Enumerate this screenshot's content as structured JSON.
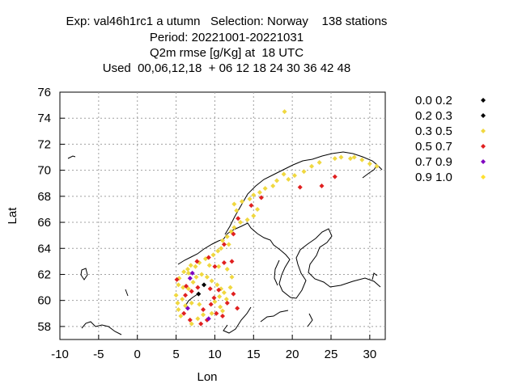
{
  "title": {
    "line1": "Exp: val46h1rc1 a utumn   Selection: Norway    138 stations",
    "line2": "Period: 20221001-20221031",
    "line3": "Q2m rmse [g/Kg] at  18 UTC",
    "line4": "Used  00,06,12,18  + 06 12 18 24 30 36 42 48"
  },
  "chart_data": {
    "type": "scatter",
    "xlabel": "Lon",
    "ylabel": "Lat",
    "xlim": [
      -10,
      32
    ],
    "ylim": [
      57,
      76
    ],
    "xticks": [
      "-10",
      "-5",
      "0",
      "5",
      "10",
      "15",
      "20",
      "25",
      "30"
    ],
    "yticks": [
      "58",
      "60",
      "62",
      "64",
      "66",
      "68",
      "70",
      "72",
      "74",
      "76"
    ],
    "grid": true,
    "legend_position": "top-right",
    "legend": [
      {
        "label": "0.0 0.2",
        "color": "#000000"
      },
      {
        "label": "0.2 0.3",
        "color": "#000000"
      },
      {
        "label": "0.3 0.5",
        "color": "#f0d840"
      },
      {
        "label": "0.5 0.7",
        "color": "#e02020"
      },
      {
        "label": "0.7 0.9",
        "color": "#8000c0"
      },
      {
        "label": "0.9 1.0",
        "color": "#ffe030"
      }
    ],
    "series": [
      {
        "name": "0.2 0.3",
        "color": "#000000",
        "points": [
          [
            7.9,
            60.5
          ],
          [
            8.6,
            61.2
          ]
        ]
      },
      {
        "name": "0.3 0.5",
        "color": "#f0d840",
        "points": [
          [
            19.0,
            74.5
          ],
          [
            26.3,
            71.0
          ],
          [
            28.0,
            71.0
          ],
          [
            29.0,
            70.8
          ],
          [
            30.9,
            70.3
          ],
          [
            30.0,
            70.5
          ],
          [
            25.5,
            70.9
          ],
          [
            23.5,
            70.6
          ],
          [
            27.5,
            70.9
          ],
          [
            21.5,
            69.9
          ],
          [
            22.5,
            70.3
          ],
          [
            20.3,
            69.6
          ],
          [
            19.5,
            69.3
          ],
          [
            18.9,
            69.7
          ],
          [
            18.0,
            69.2
          ],
          [
            17.5,
            68.8
          ],
          [
            16.5,
            68.6
          ],
          [
            15.8,
            68.3
          ],
          [
            15.0,
            68.1
          ],
          [
            14.5,
            67.8
          ],
          [
            13.5,
            67.6
          ],
          [
            12.5,
            67.4
          ],
          [
            12.8,
            66.9
          ],
          [
            15.5,
            67.0
          ],
          [
            15.0,
            66.5
          ],
          [
            14.2,
            66.2
          ],
          [
            13.3,
            66.0
          ],
          [
            12.5,
            65.6
          ],
          [
            12.1,
            65.3
          ],
          [
            11.6,
            64.9
          ],
          [
            11.0,
            64.6
          ],
          [
            11.8,
            64.3
          ],
          [
            10.8,
            64.0
          ],
          [
            10.4,
            63.8
          ],
          [
            9.8,
            63.5
          ],
          [
            8.8,
            63.2
          ],
          [
            8.0,
            62.9
          ],
          [
            7.5,
            62.6
          ],
          [
            6.9,
            62.7
          ],
          [
            6.5,
            62.4
          ],
          [
            6.0,
            62.2
          ],
          [
            5.4,
            61.7
          ],
          [
            5.3,
            61.2
          ],
          [
            5.9,
            61.0
          ],
          [
            6.6,
            60.9
          ],
          [
            7.2,
            61.4
          ],
          [
            7.6,
            61.8
          ],
          [
            8.3,
            62.0
          ],
          [
            9.0,
            61.8
          ],
          [
            9.6,
            61.5
          ],
          [
            10.3,
            61.2
          ],
          [
            10.8,
            60.9
          ],
          [
            11.2,
            60.6
          ],
          [
            10.6,
            60.3
          ],
          [
            11.5,
            60.1
          ],
          [
            10.0,
            59.9
          ],
          [
            10.7,
            59.5
          ],
          [
            11.0,
            59.2
          ],
          [
            9.6,
            59.0
          ],
          [
            8.5,
            58.9
          ],
          [
            7.8,
            58.6
          ],
          [
            7.0,
            58.2
          ],
          [
            5.6,
            58.8
          ],
          [
            5.3,
            59.3
          ],
          [
            5.2,
            59.8
          ],
          [
            6.2,
            59.6
          ],
          [
            7.0,
            59.8
          ],
          [
            8.0,
            59.7
          ],
          [
            12.0,
            61.0
          ],
          [
            12.2,
            61.8
          ],
          [
            11.6,
            62.4
          ],
          [
            9.3,
            62.7
          ],
          [
            10.5,
            62.6
          ],
          [
            6.6,
            62.1
          ],
          [
            5.0,
            60.4
          ],
          [
            5.8,
            60.1
          ]
        ]
      },
      {
        "name": "0.5 0.7",
        "color": "#e02020",
        "points": [
          [
            25.5,
            69.5
          ],
          [
            23.8,
            68.8
          ],
          [
            21.0,
            68.7
          ],
          [
            16.0,
            67.9
          ],
          [
            14.7,
            67.3
          ],
          [
            13.0,
            66.3
          ],
          [
            12.4,
            65.1
          ],
          [
            11.2,
            64.3
          ],
          [
            9.2,
            63.3
          ],
          [
            7.7,
            63.0
          ],
          [
            10.0,
            62.6
          ],
          [
            11.2,
            62.9
          ],
          [
            12.2,
            63.0
          ],
          [
            5.1,
            61.6
          ],
          [
            6.3,
            61.1
          ],
          [
            7.0,
            60.7
          ],
          [
            7.8,
            61.0
          ],
          [
            9.4,
            60.9
          ],
          [
            10.5,
            60.8
          ],
          [
            12.4,
            60.5
          ],
          [
            9.9,
            60.2
          ],
          [
            11.6,
            59.8
          ],
          [
            9.5,
            59.7
          ],
          [
            8.5,
            59.3
          ],
          [
            10.2,
            59.0
          ],
          [
            12.9,
            59.4
          ],
          [
            6.0,
            59.0
          ],
          [
            6.8,
            58.5
          ],
          [
            8.2,
            58.2
          ],
          [
            9.0,
            58.5
          ],
          [
            11.0,
            58.8
          ],
          [
            6.2,
            60.4
          ]
        ]
      },
      {
        "name": "0.7 0.9",
        "color": "#8000c0",
        "points": [
          [
            6.8,
            61.7
          ],
          [
            7.1,
            62.1
          ],
          [
            9.2,
            58.6
          ],
          [
            6.5,
            59.4
          ]
        ]
      }
    ]
  }
}
